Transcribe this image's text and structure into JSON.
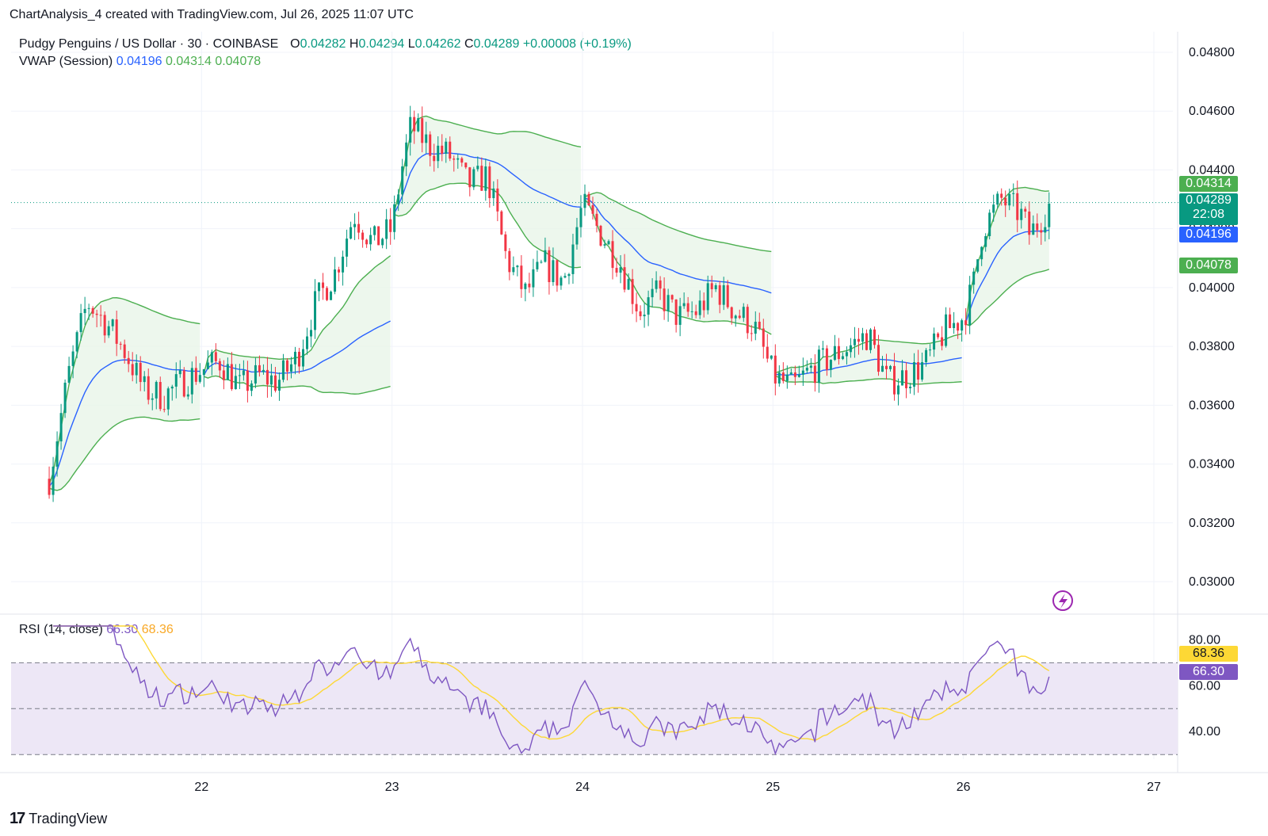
{
  "header": {
    "attribution": "ChartAnalysis_4 created with TradingView.com, Jul 26, 2025 11:07 UTC"
  },
  "legend": {
    "symbol": "Pudgy Penguins / US Dollar · 30 · COINBASE",
    "o_label": "O",
    "o_value": "0.04282",
    "h_label": "H",
    "h_value": "0.04294",
    "l_label": "L",
    "l_value": "0.04262",
    "c_label": "C",
    "c_value": "0.04289",
    "change": "+0.00008 (+0.19%)",
    "vwap_label": "VWAP (Session)",
    "vwap_value": "0.04196",
    "vwap_upper": "0.04314",
    "vwap_lower": "0.04078"
  },
  "rsi_legend": {
    "label": "RSI (14, close)",
    "rsi_value": "66.30",
    "ma_value": "68.36"
  },
  "price_tags": {
    "upper": "0.04314",
    "last": "0.04289",
    "countdown": "22:08",
    "vwap": "0.04196",
    "lower": "0.04078"
  },
  "rsi_tags": {
    "ma": "68.36",
    "rsi": "66.30"
  },
  "footer": {
    "brand": "TradingView",
    "logo": "17"
  },
  "colors": {
    "up": "#089981",
    "down": "#F23645",
    "vwap": "#2962FF",
    "band": "#4CAF50",
    "band_fill": "#E8F5E9",
    "rsi": "#7E57C2",
    "rsi_ma": "#FDD835",
    "rsi_fill": "#EDE7F6"
  },
  "chart_data": [
    {
      "type": "candlestick",
      "title": "Pudgy Penguins / US Dollar · 30 · COINBASE",
      "x_ticks": [
        "22",
        "23",
        "24",
        "25",
        "26",
        "27"
      ],
      "y_ticks": [
        "0.03000",
        "0.03200",
        "0.03400",
        "0.03600",
        "0.03800",
        "0.04000",
        "0.04200",
        "0.04400",
        "0.04600",
        "0.04800"
      ],
      "ylim": [
        0.0293,
        0.0487
      ],
      "last_price": 0.04289,
      "close_path": [
        [
          21.2,
          0.0335
        ],
        [
          21.3,
          0.037
        ],
        [
          21.4,
          0.0395
        ],
        [
          21.5,
          0.0388
        ],
        [
          21.6,
          0.0378
        ],
        [
          21.7,
          0.0365
        ],
        [
          21.8,
          0.0363
        ],
        [
          21.9,
          0.0368
        ],
        [
          22.0,
          0.0372
        ],
        [
          22.1,
          0.0375
        ],
        [
          22.2,
          0.0366
        ],
        [
          22.3,
          0.037
        ],
        [
          22.4,
          0.0368
        ],
        [
          22.5,
          0.0376
        ],
        [
          22.6,
          0.0395
        ],
        [
          22.7,
          0.0405
        ],
        [
          22.8,
          0.0425
        ],
        [
          22.9,
          0.0415
        ],
        [
          23.0,
          0.042
        ],
        [
          23.05,
          0.044
        ],
        [
          23.1,
          0.0455
        ],
        [
          23.2,
          0.0448
        ],
        [
          23.3,
          0.0445
        ],
        [
          23.4,
          0.0435
        ],
        [
          23.5,
          0.0438
        ],
        [
          23.6,
          0.041
        ],
        [
          23.7,
          0.0398
        ],
        [
          23.8,
          0.0408
        ],
        [
          23.9,
          0.0402
        ],
        [
          24.0,
          0.0428
        ],
        [
          24.1,
          0.0418
        ],
        [
          24.2,
          0.0408
        ],
        [
          24.3,
          0.0392
        ],
        [
          24.4,
          0.0398
        ],
        [
          24.5,
          0.039
        ],
        [
          24.6,
          0.0392
        ],
        [
          24.7,
          0.04
        ],
        [
          24.8,
          0.0392
        ],
        [
          24.9,
          0.0387
        ],
        [
          25.0,
          0.037
        ],
        [
          25.1,
          0.0366
        ],
        [
          25.2,
          0.0372
        ],
        [
          25.3,
          0.0376
        ],
        [
          25.4,
          0.038
        ],
        [
          25.5,
          0.0384
        ],
        [
          25.6,
          0.0368
        ],
        [
          25.7,
          0.037
        ],
        [
          25.8,
          0.0374
        ],
        [
          25.9,
          0.0385
        ],
        [
          26.0,
          0.039
        ],
        [
          26.05,
          0.04
        ],
        [
          26.1,
          0.042
        ],
        [
          26.2,
          0.043
        ],
        [
          26.3,
          0.0425
        ],
        [
          26.35,
          0.0418
        ],
        [
          26.45,
          0.0428
        ],
        [
          26.46,
          0.04289
        ]
      ],
      "vwap": {
        "session_starts": [
          21.0,
          22.0,
          23.0,
          24.0,
          25.0,
          26.0
        ],
        "last_basis": 0.04196,
        "last_upper": 0.04314,
        "last_lower": 0.04078
      }
    },
    {
      "type": "line",
      "title": "RSI (14, close)",
      "series": [
        {
          "name": "RSI",
          "last": 66.3
        },
        {
          "name": "RSI-based MA",
          "last": 68.36
        }
      ],
      "y_ticks": [
        "40.00",
        "60.00",
        "80.00"
      ],
      "ylim": [
        28,
        86
      ],
      "bands": [
        30,
        50,
        70
      ]
    }
  ]
}
